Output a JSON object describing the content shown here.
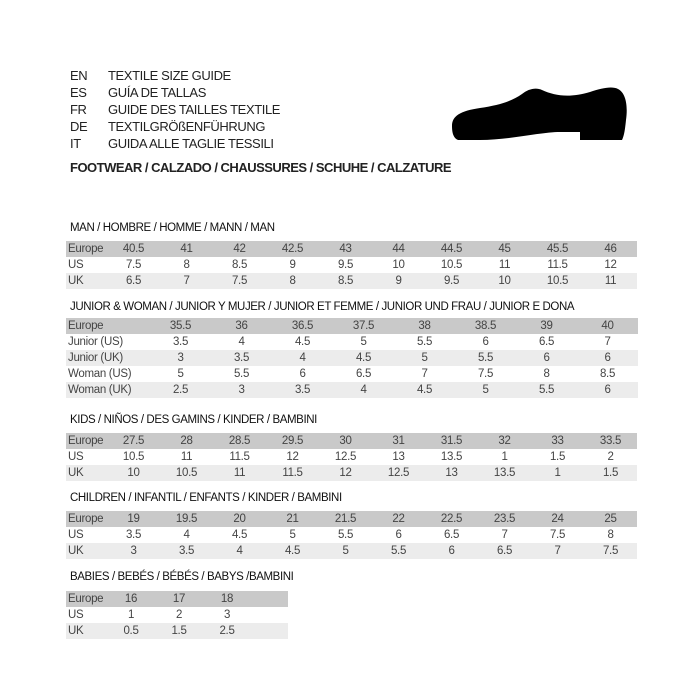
{
  "header": {
    "languages": [
      {
        "code": "EN",
        "title": "TEXTILE SIZE GUIDE"
      },
      {
        "code": "ES",
        "title": "GUÍA DE TALLAS"
      },
      {
        "code": "FR",
        "title": "GUIDE DES TAILLES TEXTILE"
      },
      {
        "code": "DE",
        "title": "TEXTILGRÖßENFÜHRUNG"
      },
      {
        "code": "IT",
        "title": "GUIDA ALLE TAGLIE TESSILI"
      }
    ],
    "footwear": "FOOTWEAR / CALZADO / CHAUSSURES / SCHUHE / CALZATURE",
    "icon": "shoe-icon"
  },
  "sections": [
    {
      "title": "MAN / HOMBRE / HOMME / MANN / MAN",
      "rows": [
        [
          "Europe",
          "40.5",
          "41",
          "42",
          "42.5",
          "43",
          "44",
          "44.5",
          "45",
          "45.5",
          "46"
        ],
        [
          "US",
          "7.5",
          "8",
          "8.5",
          "9",
          "9.5",
          "10",
          "10.5",
          "11",
          "11.5",
          "12"
        ],
        [
          "UK",
          "6.5",
          "7",
          "7.5",
          "8",
          "8.5",
          "9",
          "9.5",
          "10",
          "10.5",
          "11"
        ]
      ]
    },
    {
      "title": "JUNIOR & WOMAN / JUNIOR Y MUJER / JUNIOR ET FEMME / JUNIOR UND FRAU / JUNIOR E DONA",
      "rows": [
        [
          "Europe",
          "35.5",
          "36",
          "36.5",
          "37.5",
          "38",
          "38.5",
          "39",
          "40"
        ],
        [
          "Junior (US)",
          "3.5",
          "4",
          "4.5",
          "5",
          "5.5",
          "6",
          "6.5",
          "7"
        ],
        [
          "Junior (UK)",
          "3",
          "3.5",
          "4",
          "4.5",
          "5",
          "5.5",
          "6",
          "6"
        ],
        [
          "Woman (US)",
          "5",
          "5.5",
          "6",
          "6.5",
          "7",
          "7.5",
          "8",
          "8.5"
        ],
        [
          "Woman (UK)",
          "2.5",
          "3",
          "3.5",
          "4",
          "4.5",
          "5",
          "5.5",
          "6"
        ]
      ]
    },
    {
      "title": "KIDS / NIÑOS / DES GAMINS / KINDER / BAMBINI",
      "rows": [
        [
          "Europe",
          "27.5",
          "28",
          "28.5",
          "29.5",
          "30",
          "31",
          "31.5",
          "32",
          "33",
          "33.5"
        ],
        [
          "US",
          "10.5",
          "11",
          "11.5",
          "12",
          "12.5",
          "13",
          "13.5",
          "1",
          "1.5",
          "2"
        ],
        [
          "UK",
          "10",
          "10.5",
          "11",
          "11.5",
          "12",
          "12.5",
          "13",
          "13.5",
          "1",
          "1.5"
        ]
      ]
    },
    {
      "title": "CHILDREN / INFANTIL / ENFANTS / KINDER / BAMBINI",
      "rows": [
        [
          "Europe",
          "19",
          "19.5",
          "20",
          "21",
          "21.5",
          "22",
          "22.5",
          "23.5",
          "24",
          "25"
        ],
        [
          "US",
          "3.5",
          "4",
          "4.5",
          "5",
          "5.5",
          "6",
          "6.5",
          "7",
          "7.5",
          "8"
        ],
        [
          "UK",
          "3",
          "3.5",
          "4",
          "4.5",
          "5",
          "5.5",
          "6",
          "6.5",
          "7",
          "7.5"
        ]
      ]
    },
    {
      "title": "BABIES  / BEBÉS / BÉBÉS / BABYS /BAMBINI",
      "rows": [
        [
          "Europe",
          "16",
          "17",
          "18"
        ],
        [
          "US",
          "1",
          "2",
          "3"
        ],
        [
          "UK",
          "0.5",
          "1.5",
          "2.5"
        ]
      ]
    }
  ]
}
